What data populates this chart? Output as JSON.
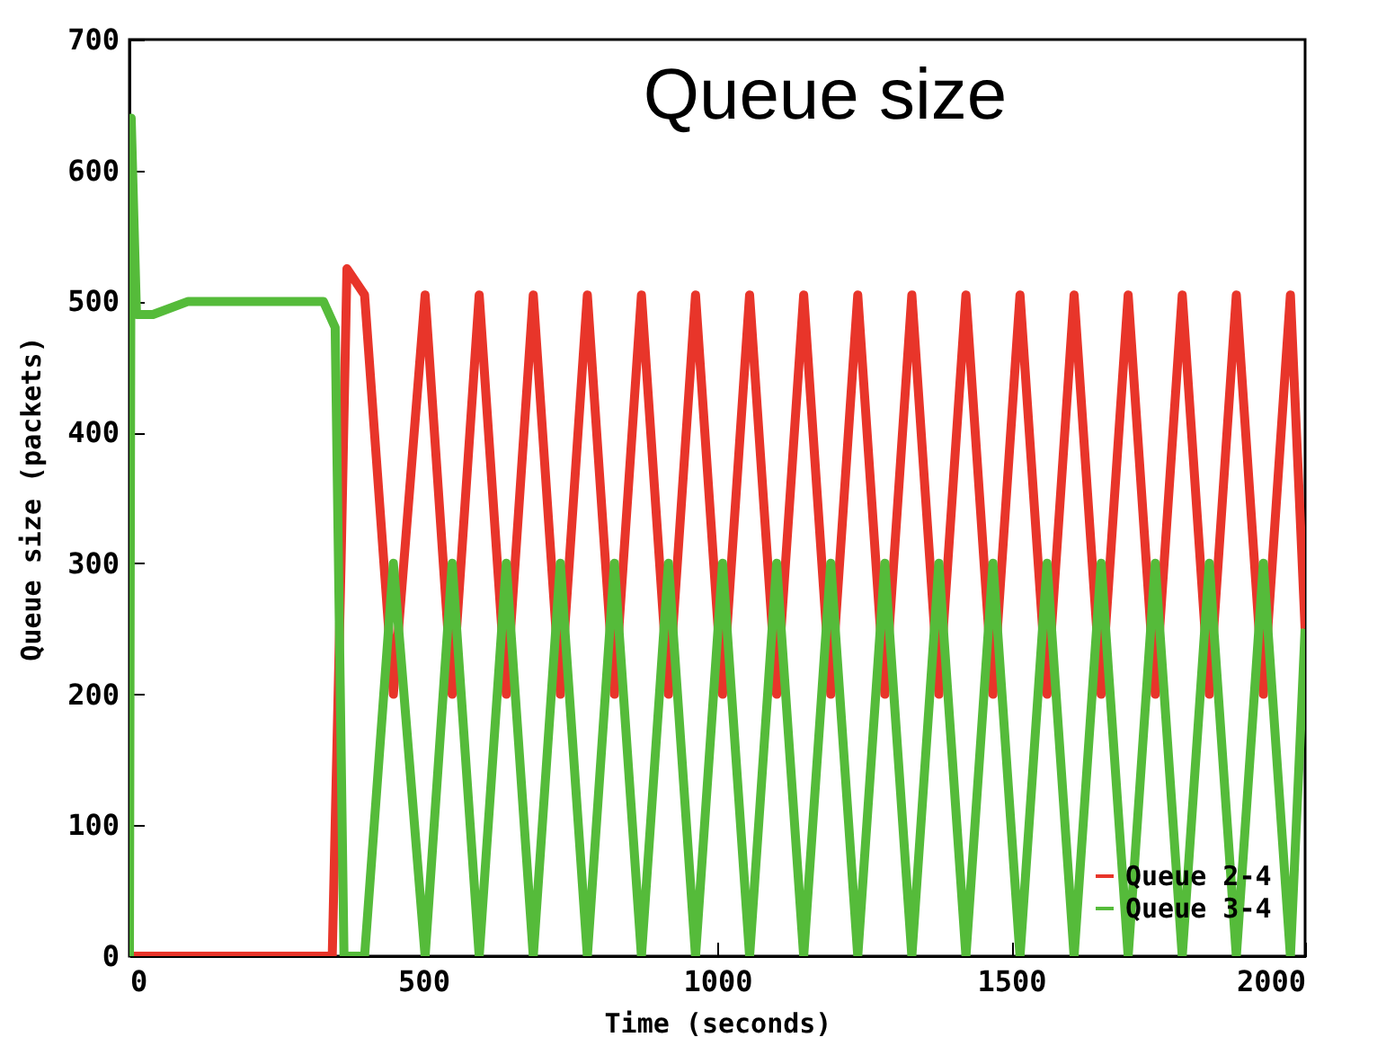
{
  "chart_data": {
    "type": "line",
    "title": "Queue size",
    "xlabel": "Time (seconds)",
    "ylabel": "Queue size (packets)",
    "xlim": [
      0,
      2000
    ],
    "xticks": [
      0,
      500,
      1000,
      1500,
      2000
    ],
    "ylim": [
      0,
      700
    ],
    "yticks": [
      0,
      100,
      200,
      300,
      400,
      500,
      600,
      700
    ],
    "grid": false,
    "legend": "bottom right",
    "marker": "none",
    "line_style": "solid",
    "series": [
      {
        "name": "Queue 2-4",
        "color": "#e8352a",
        "x": [
          0,
          345,
          360,
          370,
          400,
          449,
          503,
          549,
          595,
          641,
          687,
          733,
          779,
          825,
          871,
          917,
          963,
          1009,
          1055,
          1101,
          1147,
          1193,
          1239,
          1285,
          1331,
          1377,
          1423,
          1469,
          1515,
          1561,
          1607,
          1653,
          1699,
          1745,
          1791,
          1837,
          1883,
          1929,
          1975,
          2000
        ],
        "values": [
          0,
          0,
          300,
          525,
          505,
          200,
          505,
          200,
          505,
          200,
          505,
          200,
          505,
          200,
          505,
          200,
          505,
          200,
          505,
          200,
          505,
          200,
          505,
          200,
          505,
          200,
          505,
          200,
          505,
          200,
          505,
          200,
          505,
          200,
          505,
          200,
          505,
          200,
          505,
          250
        ]
      },
      {
        "name": "Queue 3-4",
        "color": "#55bb3a",
        "x": [
          0,
          3,
          12,
          40,
          100,
          330,
          350,
          365,
          400,
          449,
          503,
          549,
          595,
          641,
          687,
          733,
          779,
          825,
          871,
          917,
          963,
          1009,
          1055,
          1101,
          1147,
          1193,
          1239,
          1285,
          1331,
          1377,
          1423,
          1469,
          1515,
          1561,
          1607,
          1653,
          1699,
          1745,
          1791,
          1837,
          1883,
          1929,
          1975,
          2000
        ],
        "values": [
          0,
          640,
          490,
          490,
          500,
          500,
          480,
          0,
          0,
          300,
          0,
          300,
          0,
          300,
          0,
          300,
          0,
          300,
          0,
          300,
          0,
          300,
          0,
          300,
          0,
          300,
          0,
          300,
          0,
          300,
          0,
          300,
          0,
          300,
          0,
          300,
          0,
          300,
          0,
          300,
          0,
          300,
          0,
          250
        ]
      }
    ]
  }
}
